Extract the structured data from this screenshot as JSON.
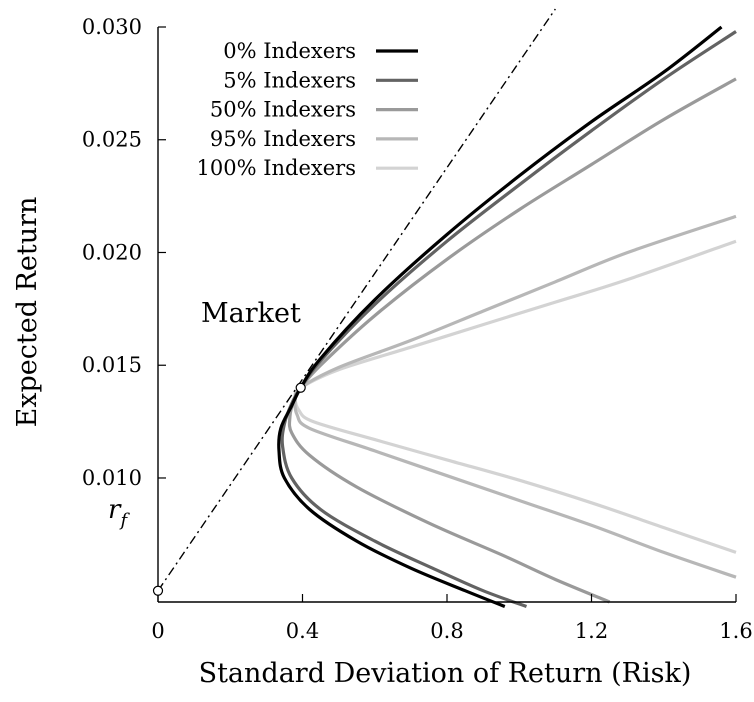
{
  "chart_data": {
    "type": "line",
    "xlabel": "Standard Deviation of Return (Risk)",
    "ylabel": "Expected Return",
    "xlim": [
      0,
      1.6
    ],
    "ylim": [
      0.0045,
      0.03
    ],
    "x_ticks": [
      {
        "value": 0,
        "label": "0"
      },
      {
        "value": 0.4,
        "label": "0.4"
      },
      {
        "value": 0.8,
        "label": "0.8"
      },
      {
        "value": 1.2,
        "label": "1.2"
      },
      {
        "value": 1.6,
        "label": "1.6"
      }
    ],
    "y_ticks": [
      {
        "value": 0.03,
        "label": "0.030"
      },
      {
        "value": 0.025,
        "label": "0.025"
      },
      {
        "value": 0.02,
        "label": "0.020"
      },
      {
        "value": 0.015,
        "label": "0.015"
      },
      {
        "value": 0.01,
        "label": "0.010"
      }
    ],
    "grid": false,
    "legend_position": "top-left",
    "series": [
      {
        "name": "0% Indexers",
        "color": "#000000",
        "upper": [
          [
            0.395,
            0.014
          ],
          [
            0.45,
            0.0153
          ],
          [
            0.6,
            0.0179
          ],
          [
            0.8,
            0.0208
          ],
          [
            1.0,
            0.0234
          ],
          [
            1.2,
            0.0258
          ],
          [
            1.4,
            0.028
          ],
          [
            1.56,
            0.03
          ]
        ],
        "lower": [
          [
            0.37,
            0.0132
          ],
          [
            0.34,
            0.0122
          ],
          [
            0.335,
            0.0112
          ],
          [
            0.35,
            0.01
          ],
          [
            0.42,
            0.0086
          ],
          [
            0.55,
            0.0072
          ],
          [
            0.7,
            0.006
          ],
          [
            0.85,
            0.005
          ],
          [
            0.96,
            0.0043
          ]
        ]
      },
      {
        "name": "5% Indexers",
        "color": "#636363",
        "upper": [
          [
            0.395,
            0.014
          ],
          [
            0.45,
            0.0152
          ],
          [
            0.6,
            0.0177
          ],
          [
            0.8,
            0.0205
          ],
          [
            1.0,
            0.023
          ],
          [
            1.2,
            0.0254
          ],
          [
            1.4,
            0.0277
          ],
          [
            1.6,
            0.0298
          ]
        ],
        "lower": [
          [
            0.37,
            0.0133
          ],
          [
            0.35,
            0.0124
          ],
          [
            0.345,
            0.0114
          ],
          [
            0.37,
            0.01
          ],
          [
            0.45,
            0.0086
          ],
          [
            0.6,
            0.0072
          ],
          [
            0.76,
            0.006
          ],
          [
            0.9,
            0.005
          ],
          [
            1.02,
            0.0043
          ]
        ]
      },
      {
        "name": "50% Indexers",
        "color": "#9a9a9a",
        "upper": [
          [
            0.395,
            0.014
          ],
          [
            0.45,
            0.015
          ],
          [
            0.6,
            0.0172
          ],
          [
            0.8,
            0.0197
          ],
          [
            1.0,
            0.0219
          ],
          [
            1.2,
            0.0239
          ],
          [
            1.4,
            0.0259
          ],
          [
            1.6,
            0.0277
          ]
        ],
        "lower": [
          [
            0.375,
            0.0134
          ],
          [
            0.365,
            0.0127
          ],
          [
            0.37,
            0.012
          ],
          [
            0.42,
            0.011
          ],
          [
            0.55,
            0.0096
          ],
          [
            0.75,
            0.008
          ],
          [
            0.95,
            0.0066
          ],
          [
            1.1,
            0.0055
          ],
          [
            1.25,
            0.0045
          ]
        ]
      },
      {
        "name": "95% Indexers",
        "color": "#b7b7b7",
        "upper": [
          [
            0.395,
            0.014
          ],
          [
            0.5,
            0.0149
          ],
          [
            0.7,
            0.0161
          ],
          [
            0.9,
            0.0174
          ],
          [
            1.1,
            0.0187
          ],
          [
            1.3,
            0.02
          ],
          [
            1.6,
            0.0216
          ]
        ],
        "lower": [
          [
            0.38,
            0.0135
          ],
          [
            0.385,
            0.0128
          ],
          [
            0.42,
            0.0122
          ],
          [
            0.6,
            0.0112
          ],
          [
            0.8,
            0.0101
          ],
          [
            1.0,
            0.009
          ],
          [
            1.2,
            0.0079
          ],
          [
            1.4,
            0.0067
          ],
          [
            1.6,
            0.0056
          ]
        ]
      },
      {
        "name": "100% Indexers",
        "color": "#d3d3d3",
        "upper": [
          [
            0.395,
            0.014
          ],
          [
            0.5,
            0.0148
          ],
          [
            0.7,
            0.0158
          ],
          [
            0.9,
            0.0168
          ],
          [
            1.1,
            0.0178
          ],
          [
            1.3,
            0.0188
          ],
          [
            1.6,
            0.0205
          ]
        ],
        "lower": [
          [
            0.38,
            0.0136
          ],
          [
            0.39,
            0.013
          ],
          [
            0.43,
            0.0125
          ],
          [
            0.6,
            0.0117
          ],
          [
            0.8,
            0.0108
          ],
          [
            1.0,
            0.0099
          ],
          [
            1.2,
            0.0089
          ],
          [
            1.4,
            0.0078
          ],
          [
            1.6,
            0.0067
          ]
        ]
      }
    ],
    "capital_market_line": {
      "from": [
        0,
        0.005
      ],
      "to": [
        1.1,
        0.0308
      ],
      "color": "#000000"
    },
    "points": [
      {
        "label": "Market",
        "x": 0.395,
        "y": 0.014
      },
      {
        "label": "r",
        "subscript": "f",
        "x": 0,
        "y": 0.005
      }
    ]
  }
}
